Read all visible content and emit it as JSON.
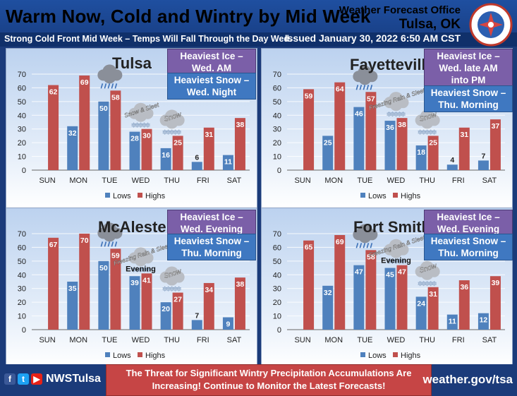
{
  "header": {
    "title": "Warm Now, Cold and Wintry by Mid Week",
    "office": "Weather Forecast Office",
    "city": "Tulsa, OK",
    "subtitle": "Strong Cold Front Mid Week – Temps Will Fall Through the Day Wed.",
    "issued": "Issued January 30, 2022 6:50 AM CST"
  },
  "colors": {
    "lows": "#4f81bd",
    "highs": "#c0504d",
    "ice": "#7b5fa8",
    "snow": "#3f78c1",
    "banner": "#1b3b7a"
  },
  "legend": {
    "lows": "Lows",
    "highs": "Highs"
  },
  "chart_data": [
    {
      "type": "bar",
      "title": "Tulsa",
      "categories": [
        "SUN",
        "MON",
        "TUE",
        "WED",
        "THU",
        "FRI",
        "SAT"
      ],
      "ylim": [
        0,
        70
      ],
      "yticks": [
        0,
        10,
        20,
        30,
        40,
        50,
        60,
        70
      ],
      "series": [
        {
          "name": "Lows",
          "values": [
            null,
            32,
            50,
            28,
            16,
            6,
            11
          ]
        },
        {
          "name": "Highs",
          "values": [
            62,
            69,
            58,
            30,
            25,
            31,
            38
          ]
        }
      ],
      "ice": "Heaviest Ice –\nWed. AM",
      "snow": "Heaviest Snow –\nWed. Night",
      "weather": [
        {
          "day": "TUE",
          "icon": "rain-cloud-icon",
          "label": ""
        },
        {
          "day": "WED",
          "icon": "snow-sleet-cloud-icon",
          "label": "Snow & Sleet"
        },
        {
          "day": "THU",
          "icon": "snow-cloud-icon",
          "label": "Snow"
        }
      ],
      "note": ""
    },
    {
      "type": "bar",
      "title": "Fayetteville",
      "categories": [
        "SUN",
        "MON",
        "TUE",
        "WED",
        "THU",
        "FRI",
        "SAT"
      ],
      "ylim": [
        0,
        70
      ],
      "yticks": [
        0,
        10,
        20,
        30,
        40,
        50,
        60,
        70
      ],
      "series": [
        {
          "name": "Lows",
          "values": [
            null,
            25,
            46,
            36,
            18,
            4,
            7
          ]
        },
        {
          "name": "Highs",
          "values": [
            59,
            64,
            57,
            38,
            25,
            31,
            37
          ]
        }
      ],
      "ice": "Heaviest Ice –\nWed. late AM\ninto PM",
      "snow": "Heaviest Snow –\nThu. Morning",
      "weather": [
        {
          "day": "TUE",
          "icon": "rain-cloud-icon",
          "label": ""
        },
        {
          "day": "WED",
          "icon": "freezing-rain-cloud-icon",
          "label": "Freezing Rain & Sleet"
        },
        {
          "day": "THU",
          "icon": "snow-cloud-icon",
          "label": "Snow"
        }
      ],
      "note": ""
    },
    {
      "type": "bar",
      "title": "McAlester",
      "categories": [
        "SUN",
        "MON",
        "TUE",
        "WED",
        "THU",
        "FRI",
        "SAT"
      ],
      "ylim": [
        0,
        70
      ],
      "yticks": [
        0,
        10,
        20,
        30,
        40,
        50,
        60,
        70
      ],
      "series": [
        {
          "name": "Lows",
          "values": [
            null,
            35,
            50,
            39,
            20,
            7,
            9
          ]
        },
        {
          "name": "Highs",
          "values": [
            67,
            70,
            59,
            41,
            27,
            34,
            38
          ]
        }
      ],
      "ice": "Heaviest Ice –\nWed. Evening",
      "snow": "Heaviest Snow –\nThu. Morning",
      "weather": [
        {
          "day": "TUE",
          "icon": "rain-cloud-icon",
          "label": ""
        },
        {
          "day": "WED",
          "icon": "freezing-rain-cloud-icon",
          "label": "Freezing Rain & Sleet"
        },
        {
          "day": "THU",
          "icon": "snow-cloud-icon",
          "label": "Snow"
        }
      ],
      "note": "Evening"
    },
    {
      "type": "bar",
      "title": "Fort Smith",
      "categories": [
        "SUN",
        "MON",
        "TUE",
        "WED",
        "THU",
        "FRI",
        "SAT"
      ],
      "ylim": [
        0,
        70
      ],
      "yticks": [
        0,
        10,
        20,
        30,
        40,
        50,
        60,
        70
      ],
      "series": [
        {
          "name": "Lows",
          "values": [
            null,
            32,
            47,
            45,
            24,
            11,
            12
          ]
        },
        {
          "name": "Highs",
          "values": [
            65,
            69,
            58,
            47,
            31,
            36,
            39
          ]
        }
      ],
      "ice": "Heaviest Ice –\nWed. Evening",
      "snow": "Heaviest Snow –\nThu. Morning",
      "weather": [
        {
          "day": "TUE",
          "icon": "rain-cloud-icon",
          "label": ""
        },
        {
          "day": "WED",
          "icon": "freezing-rain-cloud-icon",
          "label": "Freezing Rain & Sleet"
        },
        {
          "day": "THU",
          "icon": "snow-cloud-icon",
          "label": "Snow"
        }
      ],
      "note": "Evening"
    }
  ],
  "footer": {
    "handle": "NWSTulsa",
    "alert": "The Threat for Significant Wintry Precipitation Accumulations Are Increasing! Continue to Monitor the Latest Forecasts!",
    "website": "weather.gov/tsa",
    "icons": [
      "facebook-icon",
      "twitter-icon",
      "youtube-icon"
    ]
  }
}
